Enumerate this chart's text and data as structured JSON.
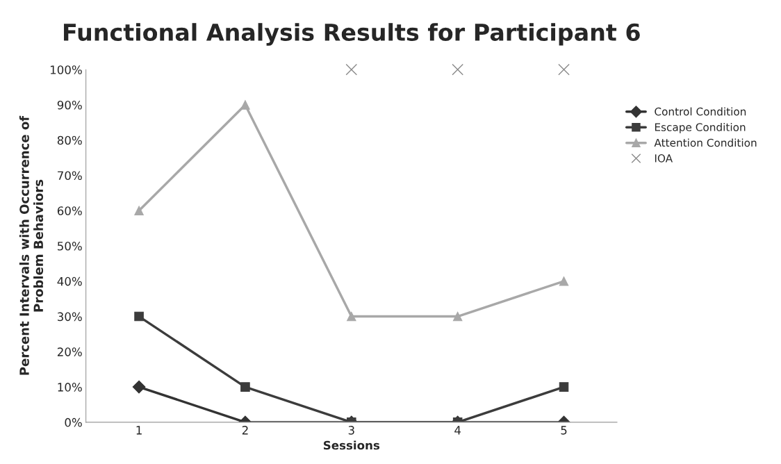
{
  "chart_data": {
    "type": "line",
    "title": "Functional Analysis Results for Participant 6",
    "xlabel": "Sessions",
    "ylabel": "Percent Intervals with Occurrence of\nProblem Behaviors",
    "categories": [
      "1",
      "2",
      "3",
      "4",
      "5"
    ],
    "series": [
      {
        "name": "Control Condition",
        "color": "#333333",
        "marker": "diamond",
        "values": [
          10,
          0,
          0,
          0,
          0
        ]
      },
      {
        "name": "Escape Condition",
        "color": "#3c3c3c",
        "marker": "square",
        "values": [
          30,
          10,
          0,
          0,
          10
        ]
      },
      {
        "name": "Attention Condition",
        "color": "#a8a8a8",
        "marker": "triangle",
        "values": [
          60,
          90,
          30,
          30,
          40
        ]
      },
      {
        "name": "IOA",
        "type": "scatter",
        "color": "#8a8a8a",
        "marker": "cross",
        "values": [
          null,
          null,
          100,
          100,
          100
        ]
      }
    ],
    "ylim": [
      0,
      100
    ],
    "yticks": [
      {
        "value": 0,
        "label": "0%"
      },
      {
        "value": 10,
        "label": "10%"
      },
      {
        "value": 20,
        "label": "20%"
      },
      {
        "value": 30,
        "label": "30%"
      },
      {
        "value": 40,
        "label": "40%"
      },
      {
        "value": 50,
        "label": "50%"
      },
      {
        "value": 60,
        "label": "60%"
      },
      {
        "value": 70,
        "label": "70%"
      },
      {
        "value": 80,
        "label": "80%"
      },
      {
        "value": 90,
        "label": "90%"
      },
      {
        "value": 100,
        "label": "100%"
      }
    ],
    "grid": false,
    "legend": "right"
  }
}
